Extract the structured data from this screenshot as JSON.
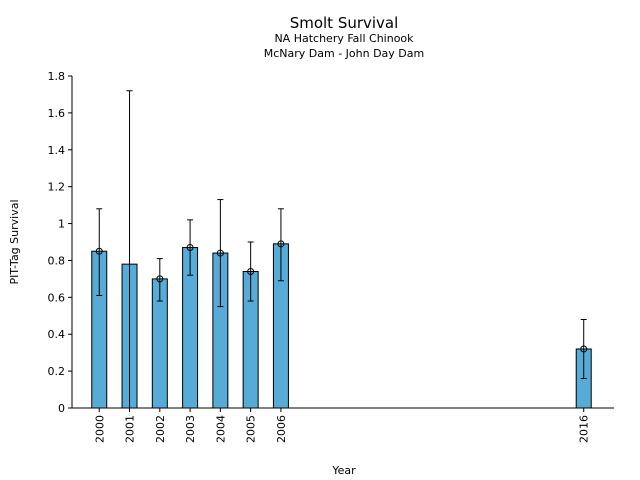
{
  "chart_data": {
    "type": "bar",
    "title": "Smolt Survival",
    "subtitle_1": "NA Hatchery Fall Chinook",
    "subtitle_2": "McNary Dam - John Day Dam",
    "xlabel": "Year",
    "ylabel": "PIT-Tag Survival",
    "ylim": [
      0,
      1.8
    ],
    "yticks": [
      "0",
      "0.2",
      "0.4",
      "0.6",
      "0.8",
      "1",
      "1.2",
      "1.4",
      "1.6",
      "1.8"
    ],
    "ytick_values": [
      0,
      0.2,
      0.4,
      0.6,
      0.8,
      1.0,
      1.2,
      1.4,
      1.6,
      1.8
    ],
    "x_range": [
      1999.1,
      2017.0
    ],
    "bar_color": "#56acd6",
    "categories": [
      "2000",
      "2001",
      "2002",
      "2003",
      "2004",
      "2005",
      "2006",
      "2016"
    ],
    "x": [
      2000,
      2001,
      2002,
      2003,
      2004,
      2005,
      2006,
      2016
    ],
    "values": [
      0.85,
      0.78,
      0.7,
      0.87,
      0.84,
      0.74,
      0.89,
      0.32
    ],
    "err_low": [
      0.61,
      0.0,
      0.58,
      0.72,
      0.55,
      0.58,
      0.69,
      0.16
    ],
    "err_high": [
      1.08,
      1.72,
      0.81,
      1.02,
      1.13,
      0.9,
      1.08,
      0.48
    ],
    "markers": [
      true,
      false,
      true,
      true,
      true,
      true,
      true,
      true
    ],
    "grid": false
  }
}
